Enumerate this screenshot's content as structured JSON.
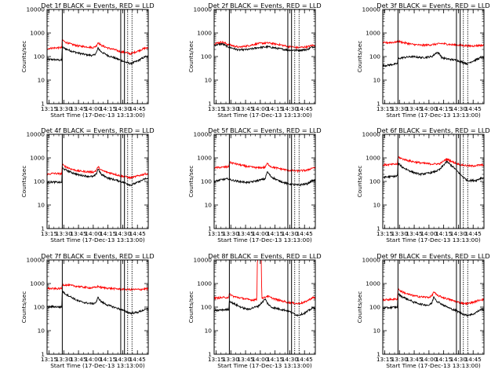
{
  "colors": {
    "events": "#000000",
    "lld": "#ff0000",
    "background": "#ffffff"
  },
  "chart_data": {
    "type": "line",
    "shared": {
      "xlabel": "Start Time (17-Dec-13 13:13:00)",
      "ylabel": "Counts/sec",
      "x_tick_labels": [
        "13:15",
        "13:30",
        "13:45",
        "14:00",
        "14:15",
        "14:30",
        "14:45"
      ],
      "x_tick_minutes": [
        2,
        17,
        32,
        47,
        62,
        77,
        92
      ],
      "xlim_minutes": [
        0,
        103
      ],
      "y_scale": "log",
      "ylim": [
        1,
        10000
      ],
      "y_tick_labels": [
        "1",
        "10",
        "100",
        "1000",
        "10000"
      ],
      "y_tick_values": [
        1,
        10,
        100,
        1000,
        10000
      ],
      "solid_vlines_minutes": [
        15.5,
        75,
        78.8
      ],
      "dotted_vlines_minutes": [
        82,
        86.5
      ],
      "legend": "in title",
      "grid": false
    },
    "panels": [
      {
        "title": "Det 1f BLACK = Events, RED = LLD",
        "series": [
          {
            "name": "Events",
            "color": "#000000",
            "x": [
              0,
              6,
              15,
              15.5,
              18,
              25,
              32,
              40,
              47,
              50,
              52,
              55,
              62,
              68,
              75,
              80,
              85,
              92,
              100
            ],
            "y": [
              75,
              75,
              70,
              250,
              220,
              170,
              140,
              120,
              110,
              140,
              230,
              160,
              110,
              90,
              70,
              58,
              50,
              65,
              100
            ]
          },
          {
            "name": "LLD",
            "color": "#ff0000",
            "x": [
              0,
              6,
              15,
              15.5,
              18,
              25,
              32,
              40,
              47,
              50,
              52,
              55,
              62,
              68,
              75,
              80,
              85,
              92,
              100
            ],
            "y": [
              220,
              230,
              240,
              520,
              420,
              330,
              280,
              260,
              240,
              280,
              400,
              300,
              230,
              200,
              160,
              150,
              130,
              170,
              230
            ]
          }
        ]
      },
      {
        "title": "Det 2f BLACK = Events, RED = LLD",
        "series": [
          {
            "name": "Events",
            "color": "#000000",
            "x": [
              0,
              8,
              15,
              25,
              35,
              45,
              55,
              65,
              75,
              85,
              95,
              100
            ],
            "y": [
              300,
              350,
              250,
              190,
              200,
              240,
              260,
              220,
              190,
              185,
              200,
              260
            ]
          },
          {
            "name": "LLD",
            "color": "#ff0000",
            "x": [
              0,
              8,
              15,
              25,
              35,
              45,
              55,
              65,
              75,
              85,
              95,
              100
            ],
            "y": [
              350,
              420,
              320,
              250,
              290,
              360,
              380,
              330,
              270,
              240,
              260,
              300
            ]
          }
        ]
      },
      {
        "title": "Det 3f BLACK = Events, RED = LLD",
        "series": [
          {
            "name": "Events",
            "color": "#000000",
            "x": [
              0,
              8,
              15,
              15.5,
              20,
              30,
              40,
              50,
              55,
              58,
              60,
              65,
              75,
              80,
              86,
              90,
              100
            ],
            "y": [
              40,
              45,
              50,
              80,
              90,
              100,
              90,
              100,
              150,
              130,
              90,
              80,
              70,
              60,
              50,
              60,
              90
            ]
          },
          {
            "name": "LLD",
            "color": "#ff0000",
            "x": [
              0,
              10,
              15,
              15.5,
              20,
              30,
              40,
              50,
              60,
              70,
              80,
              90,
              100
            ],
            "y": [
              380,
              400,
              420,
              450,
              400,
              330,
              300,
              320,
              360,
              320,
              300,
              280,
              300
            ]
          }
        ]
      },
      {
        "title": "Det 4f BLACK = Events, RED = LLD",
        "series": [
          {
            "name": "Events",
            "color": "#000000",
            "x": [
              0,
              6,
              15,
              15.5,
              18,
              25,
              32,
              40,
              47,
              50,
              52,
              55,
              62,
              68,
              75,
              80,
              85,
              92,
              100
            ],
            "y": [
              90,
              95,
              90,
              380,
              320,
              240,
              190,
              170,
              160,
              200,
              350,
              200,
              140,
              120,
              100,
              85,
              70,
              90,
              130
            ]
          },
          {
            "name": "LLD",
            "color": "#ff0000",
            "x": [
              0,
              6,
              15,
              15.5,
              18,
              25,
              32,
              40,
              47,
              50,
              52,
              55,
              62,
              68,
              75,
              80,
              85,
              92,
              100
            ],
            "y": [
              200,
              220,
              210,
              520,
              440,
              330,
              280,
              260,
              250,
              290,
              420,
              300,
              240,
              210,
              170,
              160,
              140,
              170,
              210
            ]
          }
        ]
      },
      {
        "title": "Det 5f BLACK = Events, RED = LLD",
        "series": [
          {
            "name": "Events",
            "color": "#000000",
            "x": [
              0,
              8,
              15,
              15.5,
              25,
              35,
              45,
              52,
              54,
              58,
              65,
              75,
              85,
              95,
              100
            ],
            "y": [
              100,
              120,
              130,
              120,
              100,
              90,
              110,
              130,
              260,
              160,
              110,
              80,
              70,
              80,
              110
            ]
          },
          {
            "name": "LLD",
            "color": "#ff0000",
            "x": [
              0,
              8,
              15,
              15.5,
              25,
              35,
              45,
              52,
              54,
              58,
              65,
              75,
              85,
              95,
              100
            ],
            "y": [
              380,
              400,
              420,
              650,
              520,
              420,
              380,
              400,
              580,
              420,
              360,
              300,
              280,
              300,
              380
            ]
          }
        ]
      },
      {
        "title": "Det 6f BLACK = Events, RED = LLD",
        "series": [
          {
            "name": "Events",
            "color": "#000000",
            "x": [
              0,
              8,
              15,
              15.5,
              20,
              30,
              38,
              45,
              52,
              58,
              65,
              72,
              80,
              86,
              95,
              100
            ],
            "y": [
              150,
              160,
              170,
              600,
              400,
              250,
              200,
              220,
              250,
              320,
              700,
              400,
              180,
              110,
              110,
              140
            ]
          },
          {
            "name": "LLD",
            "color": "#ff0000",
            "x": [
              0,
              8,
              15,
              15.5,
              20,
              30,
              40,
              50,
              58,
              65,
              72,
              80,
              90,
              100
            ],
            "y": [
              500,
              520,
              550,
              1100,
              900,
              700,
              600,
              550,
              560,
              900,
              650,
              500,
              450,
              500
            ]
          }
        ]
      },
      {
        "title": "Det 7f BLACK = Events, RED = LLD",
        "series": [
          {
            "name": "Events",
            "color": "#000000",
            "x": [
              0,
              6,
              15,
              15.5,
              18,
              25,
              32,
              40,
              47,
              50,
              52,
              55,
              62,
              68,
              75,
              80,
              85,
              92,
              100
            ],
            "y": [
              100,
              105,
              100,
              480,
              380,
              260,
              180,
              150,
              140,
              160,
              260,
              170,
              120,
              100,
              80,
              65,
              55,
              60,
              80
            ]
          },
          {
            "name": "LLD",
            "color": "#ff0000",
            "x": [
              0,
              10,
              15,
              15.5,
              25,
              35,
              45,
              50,
              52,
              55,
              65,
              75,
              85,
              95,
              100
            ],
            "y": [
              620,
              600,
              620,
              900,
              820,
              720,
              650,
              700,
              760,
              680,
              620,
              580,
              560,
              560,
              600
            ]
          }
        ]
      },
      {
        "title": "Det 8f BLACK = Events, RED = LLD",
        "series": [
          {
            "name": "Events",
            "color": "#000000",
            "x": [
              0,
              6,
              15,
              15.5,
              20,
              25,
              30,
              35,
              38,
              45,
              52,
              54,
              58,
              65,
              75,
              80,
              85,
              92,
              100
            ],
            "y": [
              70,
              75,
              80,
              180,
              140,
              110,
              90,
              80,
              90,
              110,
              220,
              150,
              100,
              85,
              70,
              55,
              45,
              55,
              90
            ]
          },
          {
            "name": "LLD",
            "color": "#ff0000",
            "x": [
              0,
              6,
              15,
              15.5,
              20,
              30,
              38,
              43.5,
              44,
              48,
              48.5,
              49,
              52,
              54,
              58,
              65,
              75,
              85,
              92,
              100
            ],
            "y": [
              240,
              250,
              260,
              360,
              280,
              230,
              200,
              210,
              10000,
              10000,
              250,
              240,
              260,
              300,
              250,
              200,
              160,
              140,
              160,
              250
            ]
          }
        ]
      },
      {
        "title": "Det 9f BLACK = Events, RED = LLD",
        "series": [
          {
            "name": "Events",
            "color": "#000000",
            "x": [
              0,
              6,
              15,
              15.5,
              18,
              25,
              32,
              40,
              47,
              50,
              52,
              55,
              62,
              68,
              75,
              80,
              85,
              92,
              100
            ],
            "y": [
              90,
              95,
              100,
              380,
              300,
              220,
              160,
              130,
              120,
              150,
              280,
              180,
              120,
              90,
              70,
              55,
              45,
              50,
              80
            ]
          },
          {
            "name": "LLD",
            "color": "#ff0000",
            "x": [
              0,
              6,
              15,
              15.5,
              18,
              25,
              32,
              40,
              47,
              50,
              52,
              55,
              62,
              68,
              75,
              80,
              85,
              92,
              100
            ],
            "y": [
              200,
              210,
              220,
              600,
              480,
              360,
              300,
              270,
              260,
              300,
              450,
              320,
              250,
              210,
              170,
              150,
              140,
              160,
              210
            ]
          }
        ]
      }
    ]
  }
}
